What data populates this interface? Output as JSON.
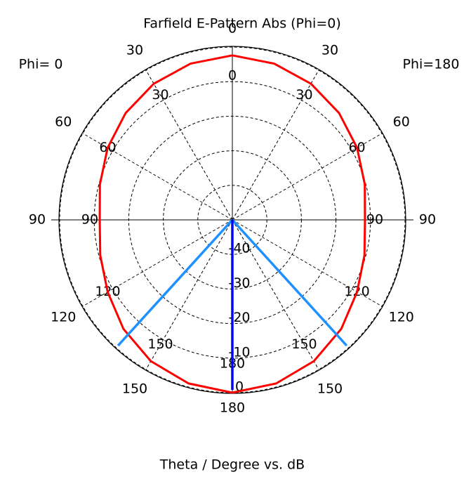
{
  "chart_data": {
    "type": "polar",
    "title": "Farfield E-Pattern Abs (Phi=0)",
    "xlabel": "Theta / Degree vs. dB",
    "left_label": "Phi=  0",
    "right_label": "Phi=180",
    "thetaticks": [
      0,
      30,
      60,
      90,
      120,
      150,
      180
    ],
    "rlim": [
      -50,
      0
    ],
    "rticks": [
      -40,
      -30,
      -20,
      -10,
      0
    ],
    "grid": true,
    "theta": [
      0,
      15,
      30,
      45,
      60,
      75,
      90,
      105,
      120,
      135,
      150,
      165,
      180
    ],
    "series": [
      {
        "side": "left",
        "color": "#ff0000",
        "values": [
          -2.4,
          -3.2,
          -4.5,
          -6.3,
          -8.3,
          -10.3,
          -11.6,
          -10.4,
          -8.3,
          -5.4,
          -2.8,
          -1.0,
          0
        ]
      },
      {
        "side": "right",
        "color": "#ff0000",
        "values": [
          -2.4,
          -3.2,
          -4.5,
          -6.3,
          -8.3,
          -10.3,
          -11.6,
          -10.4,
          -8.3,
          -5.4,
          -2.8,
          -1.0,
          0
        ]
      }
    ],
    "lines": [
      {
        "side": "left",
        "theta": 137.7,
        "color": "#1e90ff"
      },
      {
        "side": "right",
        "theta": 137.7,
        "color": "#1e90ff"
      },
      {
        "side": "right",
        "theta": 180,
        "color": "#0000ff"
      }
    ]
  }
}
